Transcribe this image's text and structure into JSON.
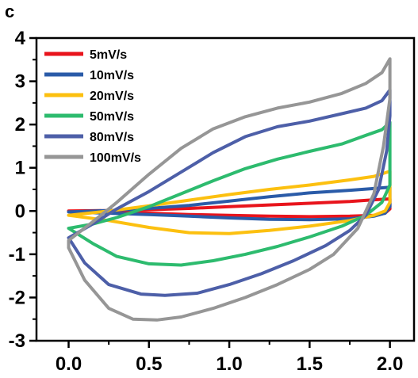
{
  "panel_label": "c",
  "chart_data": {
    "type": "line",
    "title": "",
    "xlabel": "",
    "ylabel": "",
    "xlim": [
      -0.2,
      2.15
    ],
    "ylim": [
      -3,
      4
    ],
    "xticks": [
      "0.0",
      "0.5",
      "1.0",
      "1.5",
      "2.0"
    ],
    "yticks": [
      "-3",
      "-2",
      "-1",
      "0",
      "1",
      "2",
      "3",
      "4"
    ],
    "grid": false,
    "legend_position": "top-left",
    "series": [
      {
        "name": "5mV/s",
        "color": "#e8141c",
        "x": [
          0.0,
          0.25,
          0.5,
          0.75,
          1.0,
          1.25,
          1.5,
          1.75,
          1.9,
          1.97,
          2.0,
          2.0,
          1.9,
          1.75,
          1.5,
          1.25,
          1.0,
          0.75,
          0.5,
          0.25,
          0.0
        ],
        "y": [
          0.0,
          -0.02,
          -0.05,
          -0.08,
          -0.1,
          -0.12,
          -0.13,
          -0.12,
          -0.1,
          -0.05,
          0.05,
          0.28,
          0.26,
          0.22,
          0.18,
          0.14,
          0.1,
          0.06,
          0.03,
          0.01,
          0.0
        ]
      },
      {
        "name": "10mV/s",
        "color": "#2a5ba8",
        "x": [
          0.0,
          0.25,
          0.5,
          0.75,
          1.0,
          1.25,
          1.5,
          1.75,
          1.9,
          1.97,
          2.0,
          2.0,
          1.9,
          1.75,
          1.5,
          1.25,
          1.0,
          0.75,
          0.5,
          0.25,
          0.0
        ],
        "y": [
          -0.02,
          -0.05,
          -0.08,
          -0.12,
          -0.16,
          -0.19,
          -0.2,
          -0.18,
          -0.12,
          -0.05,
          0.1,
          0.55,
          0.52,
          0.48,
          0.42,
          0.33,
          0.23,
          0.13,
          0.06,
          0.01,
          -0.02
        ]
      },
      {
        "name": "20mV/s",
        "color": "#fcc010",
        "x": [
          0.0,
          0.25,
          0.5,
          0.75,
          1.0,
          1.25,
          1.5,
          1.75,
          1.9,
          1.97,
          2.0,
          2.0,
          1.9,
          1.75,
          1.5,
          1.25,
          1.0,
          0.75,
          0.5,
          0.25,
          0.0
        ],
        "y": [
          -0.1,
          -0.22,
          -0.38,
          -0.5,
          -0.52,
          -0.45,
          -0.35,
          -0.22,
          -0.1,
          0.0,
          0.2,
          0.92,
          0.8,
          0.72,
          0.6,
          0.5,
          0.38,
          0.25,
          0.12,
          0.0,
          -0.1
        ]
      },
      {
        "name": "50mV/s",
        "color": "#2dbb6e",
        "x": [
          0.0,
          0.15,
          0.3,
          0.5,
          0.7,
          0.9,
          1.1,
          1.3,
          1.5,
          1.7,
          1.85,
          1.95,
          2.0,
          2.0,
          1.95,
          1.85,
          1.7,
          1.5,
          1.3,
          1.1,
          0.9,
          0.7,
          0.5,
          0.3,
          0.15,
          0.0
        ],
        "y": [
          -0.4,
          -0.75,
          -1.05,
          -1.22,
          -1.25,
          -1.15,
          -1.0,
          -0.82,
          -0.6,
          -0.35,
          -0.1,
          0.2,
          0.6,
          2.05,
          1.88,
          1.75,
          1.55,
          1.38,
          1.2,
          0.98,
          0.7,
          0.4,
          0.1,
          -0.15,
          -0.3,
          -0.4
        ]
      },
      {
        "name": "80mV/s",
        "color": "#4d5fa8",
        "x": [
          0.0,
          0.1,
          0.25,
          0.45,
          0.6,
          0.8,
          1.0,
          1.2,
          1.4,
          1.6,
          1.75,
          1.85,
          1.93,
          1.98,
          2.0,
          2.0,
          1.95,
          1.85,
          1.7,
          1.5,
          1.3,
          1.1,
          0.9,
          0.7,
          0.5,
          0.3,
          0.15,
          0.0
        ],
        "y": [
          -0.62,
          -1.2,
          -1.7,
          -1.92,
          -1.95,
          -1.9,
          -1.7,
          -1.45,
          -1.15,
          -0.8,
          -0.45,
          -0.1,
          0.5,
          1.4,
          2.2,
          2.8,
          2.55,
          2.38,
          2.25,
          2.08,
          1.95,
          1.72,
          1.35,
          0.9,
          0.45,
          0.05,
          -0.3,
          -0.62
        ]
      },
      {
        "name": "100mV/s",
        "color": "#969696",
        "x": [
          0.0,
          0.1,
          0.25,
          0.4,
          0.55,
          0.7,
          0.9,
          1.1,
          1.3,
          1.5,
          1.65,
          1.8,
          1.9,
          1.96,
          2.0,
          2.0,
          1.95,
          1.85,
          1.7,
          1.5,
          1.3,
          1.1,
          0.9,
          0.7,
          0.5,
          0.3,
          0.15,
          0.0
        ],
        "y": [
          -0.85,
          -1.6,
          -2.25,
          -2.5,
          -2.52,
          -2.45,
          -2.25,
          -2.0,
          -1.7,
          -1.35,
          -1.0,
          -0.4,
          0.4,
          1.5,
          2.6,
          3.52,
          3.2,
          2.95,
          2.72,
          2.52,
          2.38,
          2.18,
          1.9,
          1.45,
          0.85,
          0.2,
          -0.25,
          -0.68
        ]
      }
    ]
  }
}
